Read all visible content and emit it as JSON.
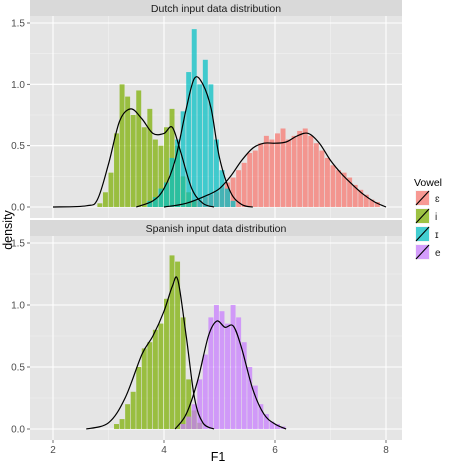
{
  "chart_data": {
    "type": "histogram-density",
    "xlabel": "F1",
    "ylabel": "density",
    "xlim": [
      2,
      8
    ],
    "ylim": [
      0,
      1.55
    ],
    "x_ticks": [
      2,
      4,
      6,
      8
    ],
    "y_ticks": [
      0.0,
      0.5,
      1.0,
      1.5
    ],
    "tick_labels_x": [
      "2",
      "4",
      "6",
      "8"
    ],
    "tick_labels_y": [
      "0.0",
      "0.5",
      "1.0",
      "1.5"
    ],
    "grid": true,
    "legend_position": "right",
    "legend": {
      "title": "Vowel",
      "entries": [
        {
          "label": "ɛ",
          "color": "#F8766D"
        },
        {
          "label": "i",
          "color": "#7CAE00"
        },
        {
          "label": "ɪ",
          "color": "#00BFC4"
        },
        {
          "label": "e",
          "color": "#C77CFF"
        }
      ]
    },
    "panels": [
      {
        "title": "Dutch input data distribution",
        "series": [
          {
            "name": "ɛ",
            "color": "#F8766D",
            "bins": [
              [
                4.45,
                0.04
              ],
              [
                4.55,
                0.06
              ],
              [
                4.65,
                0.05
              ],
              [
                4.75,
                0.08
              ],
              [
                4.85,
                0.1
              ],
              [
                4.95,
                0.12
              ],
              [
                5.05,
                0.16
              ],
              [
                5.15,
                0.2
              ],
              [
                5.25,
                0.24
              ],
              [
                5.35,
                0.3
              ],
              [
                5.45,
                0.36
              ],
              [
                5.55,
                0.44
              ],
              [
                5.65,
                0.46
              ],
              [
                5.75,
                0.52
              ],
              [
                5.85,
                0.58
              ],
              [
                5.95,
                0.55
              ],
              [
                6.05,
                0.6
              ],
              [
                6.15,
                0.64
              ],
              [
                6.25,
                0.55
              ],
              [
                6.35,
                0.58
              ],
              [
                6.45,
                0.62
              ],
              [
                6.55,
                0.64
              ],
              [
                6.65,
                0.58
              ],
              [
                6.75,
                0.52
              ],
              [
                6.85,
                0.46
              ],
              [
                6.95,
                0.4
              ],
              [
                7.05,
                0.34
              ],
              [
                7.15,
                0.3
              ],
              [
                7.25,
                0.28
              ],
              [
                7.35,
                0.24
              ],
              [
                7.45,
                0.18
              ],
              [
                7.55,
                0.14
              ],
              [
                7.65,
                0.1
              ],
              [
                7.75,
                0.06
              ],
              [
                7.85,
                0.04
              ]
            ],
            "density": [
              [
                4.0,
                0.0
              ],
              [
                4.4,
                0.03
              ],
              [
                4.8,
                0.1
              ],
              [
                5.0,
                0.15
              ],
              [
                5.2,
                0.25
              ],
              [
                5.4,
                0.38
              ],
              [
                5.6,
                0.48
              ],
              [
                5.8,
                0.52
              ],
              [
                6.0,
                0.52
              ],
              [
                6.2,
                0.53
              ],
              [
                6.4,
                0.58
              ],
              [
                6.6,
                0.6
              ],
              [
                6.8,
                0.52
              ],
              [
                7.0,
                0.38
              ],
              [
                7.2,
                0.27
              ],
              [
                7.4,
                0.18
              ],
              [
                7.6,
                0.1
              ],
              [
                7.8,
                0.04
              ],
              [
                8.0,
                0.0
              ]
            ]
          },
          {
            "name": "i",
            "color": "#7CAE00",
            "bins": [
              [
                2.85,
                0.03
              ],
              [
                2.95,
                0.12
              ],
              [
                3.05,
                0.28
              ],
              [
                3.15,
                0.6
              ],
              [
                3.25,
                1.0
              ],
              [
                3.35,
                0.9
              ],
              [
                3.45,
                0.75
              ],
              [
                3.55,
                0.95
              ],
              [
                3.65,
                0.65
              ],
              [
                3.75,
                0.8
              ],
              [
                3.85,
                0.55
              ],
              [
                3.95,
                0.5
              ],
              [
                4.05,
                0.65
              ],
              [
                4.15,
                0.8
              ],
              [
                4.25,
                0.5
              ],
              [
                4.35,
                0.25
              ],
              [
                4.45,
                0.12
              ],
              [
                4.55,
                0.05
              ]
            ],
            "density": [
              [
                2.0,
                0.0
              ],
              [
                2.6,
                0.01
              ],
              [
                2.8,
                0.06
              ],
              [
                3.0,
                0.35
              ],
              [
                3.2,
                0.7
              ],
              [
                3.4,
                0.8
              ],
              [
                3.6,
                0.72
              ],
              [
                3.8,
                0.6
              ],
              [
                4.0,
                0.6
              ],
              [
                4.15,
                0.65
              ],
              [
                4.3,
                0.45
              ],
              [
                4.5,
                0.15
              ],
              [
                4.7,
                0.03
              ],
              [
                4.9,
                0.0
              ]
            ]
          },
          {
            "name": "ɪ",
            "color": "#00BFC4",
            "bins": [
              [
                3.75,
                0.05
              ],
              [
                3.85,
                0.08
              ],
              [
                3.95,
                0.15
              ],
              [
                4.05,
                0.2
              ],
              [
                4.15,
                0.4
              ],
              [
                4.25,
                0.55
              ],
              [
                4.35,
                0.78
              ],
              [
                4.45,
                1.1
              ],
              [
                4.55,
                1.45
              ],
              [
                4.65,
                1.0
              ],
              [
                4.75,
                1.2
              ],
              [
                4.85,
                1.0
              ],
              [
                4.95,
                0.55
              ],
              [
                5.05,
                0.3
              ],
              [
                5.15,
                0.15
              ],
              [
                5.25,
                0.05
              ]
            ],
            "density": [
              [
                3.5,
                0.0
              ],
              [
                3.8,
                0.05
              ],
              [
                4.0,
                0.15
              ],
              [
                4.2,
                0.38
              ],
              [
                4.4,
                0.8
              ],
              [
                4.55,
                1.05
              ],
              [
                4.7,
                1.0
              ],
              [
                4.85,
                0.8
              ],
              [
                5.0,
                0.4
              ],
              [
                5.2,
                0.12
              ],
              [
                5.4,
                0.02
              ],
              [
                5.6,
                0.0
              ]
            ]
          }
        ]
      },
      {
        "title": "Spanish input data distribution",
        "series": [
          {
            "name": "i",
            "color": "#7CAE00",
            "bins": [
              [
                3.15,
                0.04
              ],
              [
                3.25,
                0.08
              ],
              [
                3.35,
                0.2
              ],
              [
                3.45,
                0.3
              ],
              [
                3.55,
                0.5
              ],
              [
                3.65,
                0.65
              ],
              [
                3.75,
                0.7
              ],
              [
                3.85,
                0.8
              ],
              [
                3.95,
                0.85
              ],
              [
                4.05,
                1.05
              ],
              [
                4.15,
                1.4
              ],
              [
                4.25,
                1.35
              ],
              [
                4.35,
                0.9
              ],
              [
                4.45,
                0.4
              ],
              [
                4.55,
                0.15
              ],
              [
                4.65,
                0.05
              ]
            ],
            "density": [
              [
                2.6,
                0.0
              ],
              [
                3.0,
                0.05
              ],
              [
                3.3,
                0.25
              ],
              [
                3.6,
                0.6
              ],
              [
                3.8,
                0.75
              ],
              [
                4.0,
                0.95
              ],
              [
                4.15,
                1.15
              ],
              [
                4.25,
                1.2
              ],
              [
                4.4,
                0.75
              ],
              [
                4.55,
                0.25
              ],
              [
                4.7,
                0.05
              ],
              [
                4.9,
                0.0
              ]
            ]
          },
          {
            "name": "e",
            "color": "#C77CFF",
            "bins": [
              [
                4.35,
                0.04
              ],
              [
                4.45,
                0.1
              ],
              [
                4.55,
                0.2
              ],
              [
                4.65,
                0.4
              ],
              [
                4.75,
                0.6
              ],
              [
                4.85,
                0.9
              ],
              [
                4.95,
                1.0
              ],
              [
                5.05,
                0.95
              ],
              [
                5.15,
                0.85
              ],
              [
                5.25,
                1.0
              ],
              [
                5.35,
                0.9
              ],
              [
                5.45,
                0.7
              ],
              [
                5.55,
                0.5
              ],
              [
                5.65,
                0.35
              ],
              [
                5.75,
                0.2
              ],
              [
                5.85,
                0.12
              ],
              [
                5.95,
                0.06
              ],
              [
                6.05,
                0.04
              ],
              [
                6.15,
                0.02
              ]
            ],
            "density": [
              [
                4.2,
                0.0
              ],
              [
                4.4,
                0.12
              ],
              [
                4.6,
                0.38
              ],
              [
                4.8,
                0.75
              ],
              [
                4.95,
                0.87
              ],
              [
                5.1,
                0.82
              ],
              [
                5.25,
                0.83
              ],
              [
                5.4,
                0.65
              ],
              [
                5.6,
                0.32
              ],
              [
                5.8,
                0.12
              ],
              [
                6.0,
                0.04
              ],
              [
                6.2,
                0.0
              ]
            ]
          }
        ]
      }
    ]
  }
}
